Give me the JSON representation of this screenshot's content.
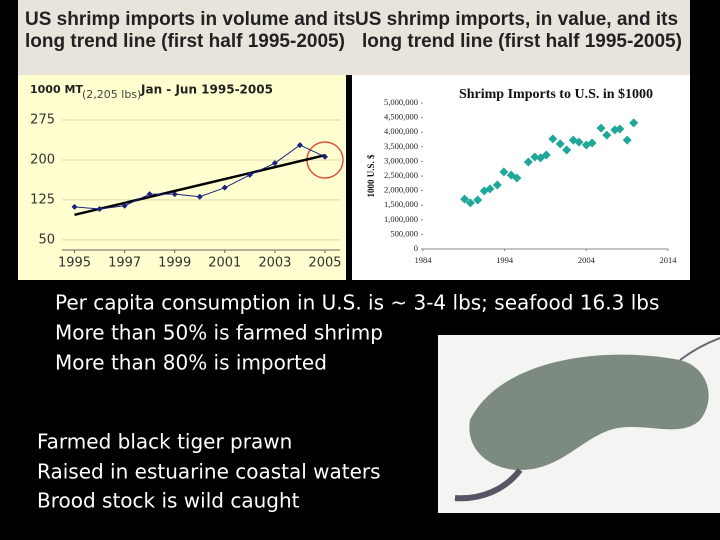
{
  "slide": {
    "titles": [
      [
        "US shrimp imports in volume and its",
        "long trend line (first half 1995-2005)"
      ],
      [
        "US shrimp imports, in value, and its",
        "long trend line (first half 1995-2005)"
      ]
    ],
    "bullets": [
      "Per capita consumption in U.S. is ~ 3-4 lbs; seafood 16.3 lbs",
      "More than 50% is farmed shrimp",
      "More than 80% is imported"
    ],
    "caption": [
      "Farmed black tiger prawn",
      "Raised in estuarine coastal waters",
      "Brood stock is wild caught"
    ]
  },
  "chart_data": [
    {
      "type": "line",
      "y_label": "1000 MT",
      "y_unit": "(2,205 lbs)",
      "subtitle": "Jan - Jun 1995-2005",
      "x": [
        1995,
        1996,
        1997,
        1998,
        1999,
        2000,
        2001,
        2002,
        2003,
        2004,
        2005
      ],
      "values": [
        112,
        108,
        114,
        136,
        136,
        131,
        148,
        172,
        194,
        228,
        206
      ],
      "color": "#1a237e",
      "trend_x": [
        1995,
        2005
      ],
      "trend_values": [
        97,
        209
      ],
      "trend_color": "#000000",
      "xlim": [
        1994.5,
        2005.6
      ],
      "xticks": [
        1995,
        1997,
        1999,
        2001,
        2003,
        2005
      ],
      "ylim": [
        31,
        322
      ],
      "yticks": [
        50,
        125,
        200,
        275
      ],
      "grid": true
    },
    {
      "type": "scatter",
      "title": "Shrimp Imports to U.S. in $1000",
      "y_label": "1000 U.S. $",
      "x": [
        1989.1,
        1989.8,
        1990.7,
        1991.5,
        1992.2,
        1993.1,
        1993.9,
        1994.8,
        1995.5,
        1996.9,
        1997.7,
        1998.4,
        1999.1,
        1999.9,
        2000.8,
        2001.6,
        2002.4,
        2003.1,
        2004.0,
        2004.7,
        2005.8,
        2006.5,
        2007.5,
        2008.1,
        2009.0,
        2009.8
      ],
      "values": [
        1710000,
        1580000,
        1680000,
        1990000,
        2060000,
        2190000,
        2640000,
        2530000,
        2430000,
        2980000,
        3150000,
        3120000,
        3220000,
        3770000,
        3600000,
        3390000,
        3730000,
        3660000,
        3560000,
        3630000,
        4140000,
        3900000,
        4080000,
        4110000,
        3730000,
        4320000
      ],
      "color": "#1fa89a",
      "xlim": [
        1984,
        2014
      ],
      "xticks": [
        1984,
        1994,
        2004,
        2014
      ],
      "ylim": [
        0,
        5000000
      ],
      "yticks": [
        0,
        {
          "value": 500000,
          "label": "500,000"
        },
        {
          "value": 1000000,
          "label": "1,000,000"
        },
        {
          "value": 1500000,
          "label": "1,500,000"
        },
        {
          "value": 2000000,
          "label": "2,000,000"
        },
        {
          "value": 2500000,
          "label": "2,500,000"
        },
        {
          "value": 3000000,
          "label": "3,000,000"
        },
        {
          "value": 3500000,
          "label": "3,500,000"
        },
        {
          "value": 4000000,
          "label": "4,000,000"
        },
        {
          "value": 4500000,
          "label": "4,500,000"
        },
        {
          "value": 5000000,
          "label": "5,000,000"
        }
      ],
      "grid": false
    }
  ]
}
